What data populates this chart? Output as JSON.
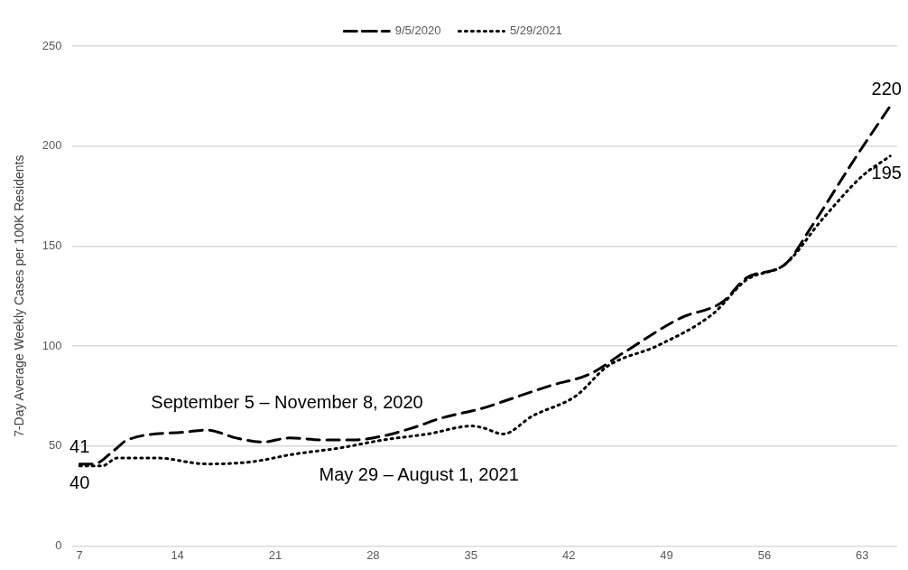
{
  "chart_data": {
    "type": "line",
    "ylabel": "7-Day Average Weekly Cases per 100K Residents",
    "xlim": [
      6.5,
      65.5
    ],
    "xticks": [
      7,
      14,
      21,
      28,
      35,
      42,
      49,
      56,
      63
    ],
    "ylim": [
      0,
      250
    ],
    "yticks": [
      0,
      50,
      100,
      150,
      200,
      250
    ],
    "grid": "y",
    "legend": "top",
    "marker": "none",
    "series": [
      {
        "name": "9/5/2020",
        "color": "#000000",
        "line_style": "dashed",
        "x": [
          7,
          8,
          9.5,
          10.4,
          14.6,
          16.1,
          18.2,
          20.1,
          22,
          24.5,
          26.6,
          28.7,
          30.8,
          32.9,
          35.9,
          37.2,
          40.6,
          43.5,
          46,
          50,
          53,
          54.7,
          57.5,
          59.4,
          62.5,
          65
        ],
        "values": [
          41,
          41,
          48,
          53,
          57,
          58,
          54,
          52,
          54,
          53,
          53,
          55,
          59,
          64,
          69,
          72,
          80,
          86,
          97,
          114,
          122,
          134,
          141,
          160,
          194,
          220
        ],
        "value_labels": [
          "41",
          null,
          null,
          null,
          null,
          null,
          null,
          null,
          null,
          null,
          null,
          null,
          null,
          null,
          null,
          null,
          null,
          null,
          null,
          null,
          null,
          null,
          null,
          null,
          null,
          "220"
        ]
      },
      {
        "name": "5/29/2021",
        "color": "#000000",
        "line_style": "dotted",
        "x": [
          7,
          8.6,
          9.7,
          12.5,
          16.1,
          19.2,
          22.4,
          25.6,
          28.7,
          31.9,
          35.1,
          35.9,
          37.3,
          39.4,
          42.5,
          44.8,
          48.3,
          52.3,
          54.7,
          57.5,
          60.1,
          63,
          65
        ],
        "values": [
          40,
          40,
          44,
          44,
          41,
          42,
          46,
          49,
          53,
          56,
          60,
          59,
          56,
          65,
          75,
          90,
          100,
          116,
          133,
          141,
          163,
          185,
          195
        ],
        "value_labels": [
          "40",
          null,
          null,
          null,
          null,
          null,
          null,
          null,
          null,
          null,
          null,
          null,
          null,
          null,
          null,
          null,
          null,
          null,
          null,
          null,
          null,
          null,
          "195"
        ]
      }
    ],
    "annotations": [
      "September 5 – November 8, 2020",
      "May 29 – August 1, 2021"
    ]
  }
}
